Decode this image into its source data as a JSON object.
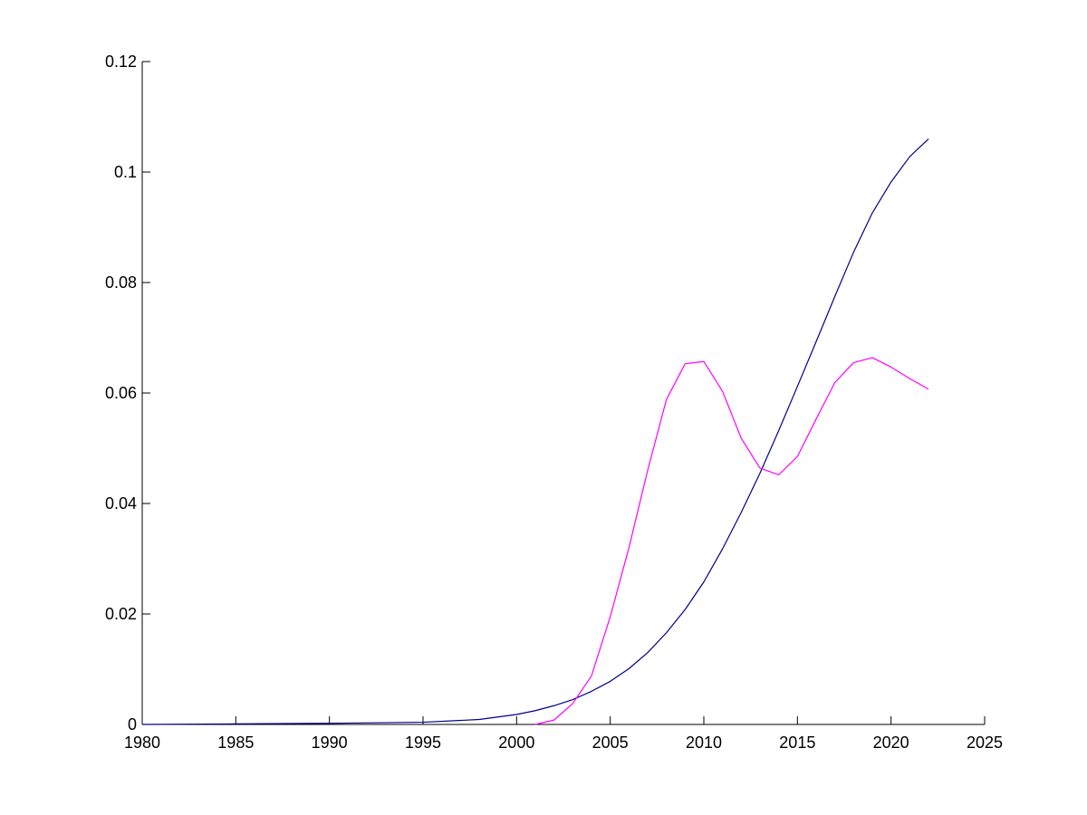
{
  "chart_data": {
    "type": "line",
    "title": "",
    "xlabel": "",
    "ylabel": "",
    "xlim": [
      1980,
      2025
    ],
    "ylim": [
      0,
      0.12
    ],
    "x_ticks": [
      1980,
      1985,
      1990,
      1995,
      2000,
      2005,
      2010,
      2015,
      2020,
      2025
    ],
    "x_tick_labels": [
      "1980",
      "1985",
      "1990",
      "1995",
      "2000",
      "2005",
      "2010",
      "2015",
      "2020",
      "2025"
    ],
    "y_ticks": [
      0,
      0.02,
      0.04,
      0.06,
      0.08,
      0.1,
      0.12
    ],
    "y_tick_labels": [
      "0",
      "0.02",
      "0.04",
      "0.06",
      "0.08",
      "0.1",
      "0.12"
    ],
    "grid": false,
    "legend": "none",
    "series": [
      {
        "color": "#00008b",
        "x": [
          1980,
          1985,
          1990,
          1995,
          1998,
          2000,
          2001,
          2002,
          2003,
          2004,
          2005,
          2006,
          2007,
          2008,
          2009,
          2010,
          2011,
          2012,
          2013,
          2014,
          2015,
          2016,
          2017,
          2018,
          2019,
          2020,
          2021,
          2022
        ],
        "y": [
          0.0,
          0.0001,
          0.0002,
          0.0004,
          0.0009,
          0.0018,
          0.0025,
          0.0034,
          0.0045,
          0.006,
          0.0078,
          0.0101,
          0.013,
          0.0166,
          0.0208,
          0.0258,
          0.0318,
          0.0384,
          0.0455,
          0.0532,
          0.0612,
          0.0693,
          0.0775,
          0.0855,
          0.0926,
          0.0982,
          0.1028,
          0.106
        ]
      },
      {
        "color": "#ff00ff",
        "x": [
          2001,
          2002,
          2003,
          2004,
          2005,
          2006,
          2007,
          2008,
          2009,
          2010,
          2011,
          2012,
          2013,
          2014,
          2015,
          2016,
          2017,
          2018,
          2019,
          2020,
          2021,
          2022
        ],
        "y": [
          0.0,
          0.0008,
          0.0038,
          0.0088,
          0.0195,
          0.032,
          0.046,
          0.0588,
          0.0653,
          0.0657,
          0.0603,
          0.0518,
          0.0464,
          0.0452,
          0.0485,
          0.0553,
          0.0619,
          0.0655,
          0.0664,
          0.0647,
          0.0626,
          0.0607
        ]
      }
    ]
  }
}
